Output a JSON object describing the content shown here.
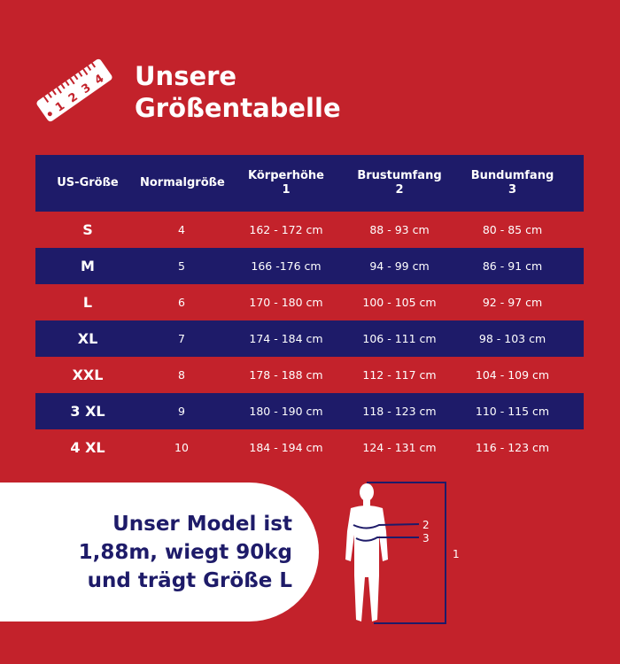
{
  "title": {
    "line1": "Unsere",
    "line2": "Größentabelle"
  },
  "ruler_numbers": [
    "1",
    "2",
    "3",
    "4"
  ],
  "table": {
    "headers": [
      {
        "line1": "US-Größe",
        "line2": ""
      },
      {
        "line1": "Normalgröße",
        "line2": ""
      },
      {
        "line1": "Körperhöhe",
        "line2": "1"
      },
      {
        "line1": "Brustumfang",
        "line2": "2"
      },
      {
        "line1": "Bundumfang",
        "line2": "3"
      }
    ],
    "rows": [
      [
        "S",
        "4",
        "162 - 172 cm",
        "88 - 93 cm",
        "80 - 85 cm"
      ],
      [
        "M",
        "5",
        "166 -176 cm",
        "94 - 99 cm",
        "86 - 91 cm"
      ],
      [
        "L",
        "6",
        "170 - 180 cm",
        "100 - 105 cm",
        "92 - 97 cm"
      ],
      [
        "XL",
        "7",
        "174 - 184 cm",
        "106 - 111 cm",
        "98 - 103 cm"
      ],
      [
        "XXL",
        "8",
        "178 - 188 cm",
        "112 - 117 cm",
        "104 - 109 cm"
      ],
      [
        "3 XL",
        "9",
        "180 - 190 cm",
        "118 - 123 cm",
        "110 - 115 cm"
      ],
      [
        "4 XL",
        "10",
        "184 - 194 cm",
        "124 - 131 cm",
        "116 - 123 cm"
      ]
    ]
  },
  "model": {
    "line1": "Unser Model ist",
    "line2": "1,88m, wiegt 90kg",
    "line3": "und trägt Größe L"
  },
  "figure_labels": {
    "height": "1",
    "chest": "2",
    "waist": "3"
  },
  "colors": {
    "background": "#c3222b",
    "navy": "#1e1b69"
  }
}
